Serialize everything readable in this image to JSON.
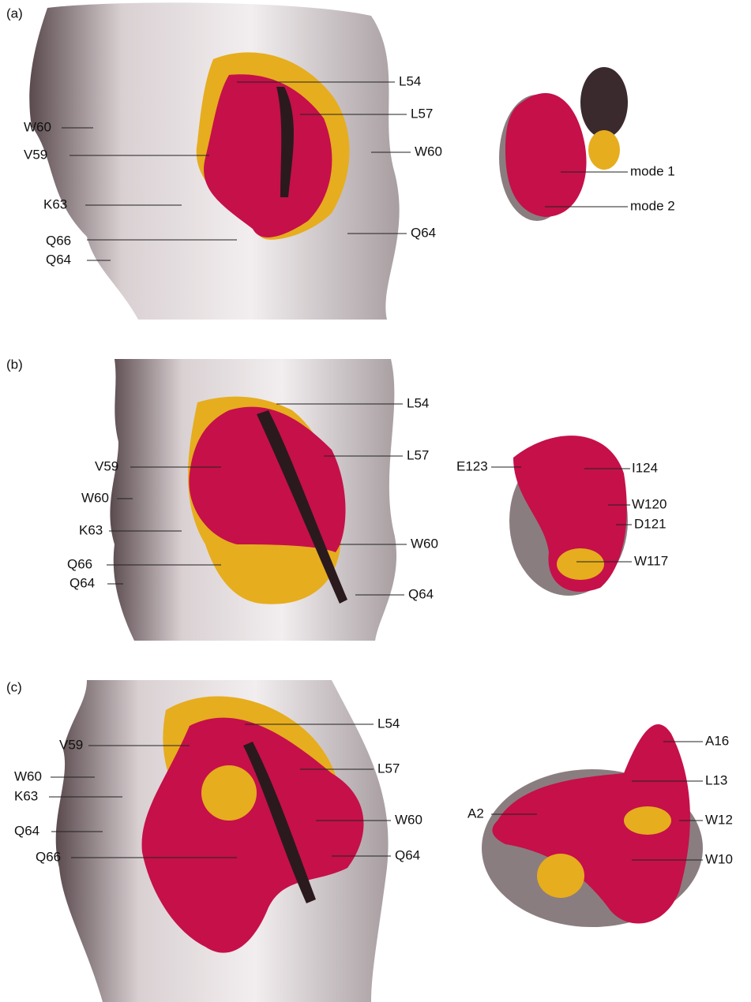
{
  "panels": [
    {
      "label": "(a)",
      "annotations": [
        "L54",
        "L57",
        "W60",
        "V59",
        "W60",
        "K63",
        "Q64",
        "Q66",
        "Q64",
        "mode 1",
        "mode 2"
      ]
    },
    {
      "label": "(b)",
      "annotations": [
        "L54",
        "L57",
        "V59",
        "W60",
        "K63",
        "W60",
        "Q66",
        "Q64",
        "Q64",
        "E123",
        "I124",
        "W120",
        "D121",
        "W117"
      ]
    },
    {
      "label": "(c)",
      "annotations": [
        "L54",
        "L57",
        "V59",
        "W60",
        "K63",
        "W60",
        "Q64",
        "Q66",
        "Q64",
        "A16",
        "L13",
        "A2",
        "W12",
        "W10"
      ]
    }
  ]
}
